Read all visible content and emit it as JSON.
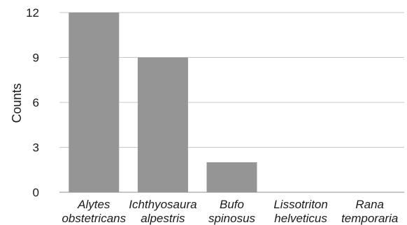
{
  "chart_data": {
    "type": "bar",
    "categories": [
      [
        "Alytes",
        "obstetricans"
      ],
      [
        "Ichthyosaura",
        "alpestris"
      ],
      [
        "Bufo",
        "spinosus"
      ],
      [
        "Lissotriton",
        "helveticus"
      ],
      [
        "Rana",
        "temporaria"
      ]
    ],
    "values": [
      12,
      9,
      2,
      0,
      0
    ],
    "ylabel": "Counts",
    "xlabel": "",
    "ylim": [
      0,
      12
    ],
    "yticks": [
      "0",
      "3",
      "6",
      "9",
      "12"
    ],
    "grid": true,
    "legend": "none",
    "bar_color": "#959595"
  }
}
